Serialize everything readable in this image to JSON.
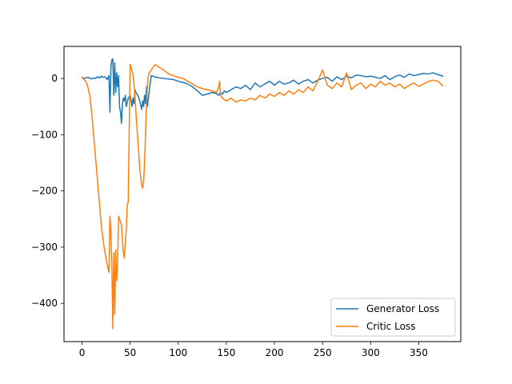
{
  "chart_data": {
    "type": "line",
    "title": "",
    "xlabel": "",
    "ylabel": "",
    "xlim": [
      -18.75,
      393.75
    ],
    "ylim": [
      -468,
      57
    ],
    "xticks": [
      0,
      50,
      100,
      150,
      200,
      250,
      300,
      350
    ],
    "yticks": [
      0,
      -100,
      -200,
      -300,
      -400
    ],
    "xtick_labels": [
      "0",
      "50",
      "100",
      "150",
      "200",
      "250",
      "300",
      "350"
    ],
    "ytick_labels": [
      "0",
      "−100",
      "−200",
      "−300",
      "−400"
    ],
    "grid": false,
    "legend_position": "lower-right",
    "series": [
      {
        "name": "Generator Loss",
        "color": "#1f77b4",
        "x": [
          0,
          2,
          4,
          6,
          8,
          10,
          12,
          14,
          16,
          18,
          20,
          22,
          24,
          26,
          28,
          29,
          30,
          31,
          32,
          33,
          34,
          35,
          36,
          37,
          38,
          39,
          40,
          41,
          42,
          43,
          44,
          45,
          46,
          48,
          50,
          51,
          52,
          53,
          54,
          55,
          56,
          58,
          60,
          62,
          63,
          64,
          65,
          66,
          67,
          68,
          70,
          72,
          75,
          80,
          85,
          90,
          95,
          100,
          105,
          110,
          115,
          120,
          125,
          130,
          135,
          140,
          142,
          144,
          146,
          148,
          150,
          155,
          160,
          165,
          170,
          175,
          180,
          185,
          190,
          195,
          200,
          205,
          210,
          215,
          220,
          225,
          230,
          235,
          240,
          245,
          250,
          255,
          260,
          265,
          270,
          275,
          280,
          285,
          290,
          295,
          300,
          305,
          310,
          315,
          320,
          325,
          330,
          335,
          340,
          345,
          350,
          355,
          360,
          365,
          370,
          375
        ],
        "y": [
          2,
          0,
          1,
          2,
          1,
          -1,
          1,
          0,
          3,
          1,
          4,
          2,
          3,
          -2,
          5,
          -60,
          20,
          33,
          35,
          -30,
          28,
          -25,
          10,
          -15,
          5,
          -50,
          -60,
          -80,
          -45,
          -35,
          -40,
          -30,
          -50,
          -35,
          -30,
          -40,
          -50,
          -35,
          -45,
          -20,
          -25,
          -30,
          -40,
          -55,
          -40,
          -50,
          -30,
          -45,
          -15,
          -50,
          -20,
          5,
          3,
          1,
          0,
          -1,
          -2,
          -5,
          -7,
          -10,
          -15,
          -22,
          -30,
          -28,
          -25,
          -27,
          -30,
          -25,
          -28,
          -22,
          -25,
          -20,
          -15,
          -18,
          -12,
          -20,
          -8,
          -15,
          -10,
          -5,
          -12,
          -5,
          -10,
          -8,
          -3,
          -10,
          -5,
          -2,
          -8,
          -3,
          0,
          2,
          -5,
          3,
          -2,
          4,
          1,
          6,
          5,
          3,
          4,
          2,
          0,
          5,
          -2,
          3,
          6,
          2,
          8,
          5,
          7,
          9,
          8,
          10,
          7,
          4
        ]
      },
      {
        "name": "Critic Loss",
        "color": "#ff7f0e",
        "x": [
          0,
          2,
          4,
          6,
          8,
          10,
          12,
          14,
          16,
          18,
          20,
          22,
          24,
          26,
          28,
          29,
          30,
          31,
          32,
          33,
          34,
          35,
          36,
          37,
          38,
          39,
          40,
          41,
          42,
          43,
          44,
          45,
          46,
          47,
          48,
          50,
          52,
          53,
          54,
          55,
          56,
          58,
          60,
          62,
          63,
          64,
          65,
          66,
          67,
          68,
          69,
          70,
          72,
          74,
          76,
          78,
          80,
          85,
          90,
          95,
          100,
          105,
          110,
          115,
          120,
          125,
          130,
          135,
          140,
          142,
          143,
          144,
          146,
          148,
          150,
          155,
          160,
          165,
          170,
          175,
          180,
          185,
          190,
          195,
          200,
          205,
          210,
          215,
          220,
          225,
          230,
          235,
          240,
          245,
          250,
          255,
          260,
          265,
          270,
          275,
          280,
          285,
          290,
          295,
          300,
          305,
          310,
          315,
          320,
          325,
          330,
          335,
          340,
          345,
          350,
          355,
          360,
          365,
          370,
          375
        ],
        "y": [
          2,
          -2,
          -5,
          -15,
          -30,
          -60,
          -100,
          -140,
          -180,
          -220,
          -260,
          -290,
          -310,
          -330,
          -345,
          -245,
          -270,
          -330,
          -445,
          -310,
          -420,
          -305,
          -360,
          -330,
          -245,
          -250,
          -255,
          -260,
          -290,
          -310,
          -320,
          -290,
          -270,
          -225,
          -220,
          25,
          15,
          5,
          -10,
          -30,
          -60,
          -110,
          -160,
          -190,
          -195,
          -185,
          -150,
          -100,
          -50,
          -10,
          5,
          10,
          15,
          20,
          25,
          22,
          20,
          15,
          8,
          5,
          2,
          0,
          -5,
          -10,
          -15,
          -18,
          -20,
          -22,
          -25,
          -15,
          -5,
          -30,
          -35,
          -38,
          -40,
          -35,
          -42,
          -38,
          -40,
          -35,
          -38,
          -30,
          -35,
          -28,
          -32,
          -25,
          -30,
          -22,
          -28,
          -20,
          -25,
          -15,
          -22,
          -5,
          15,
          -12,
          -18,
          -8,
          -15,
          10,
          -20,
          -12,
          -8,
          -18,
          -10,
          -15,
          -5,
          -12,
          -8,
          -15,
          -10,
          -18,
          -12,
          -8,
          -14,
          -10,
          -5,
          -3,
          -5,
          -13
        ]
      }
    ]
  }
}
